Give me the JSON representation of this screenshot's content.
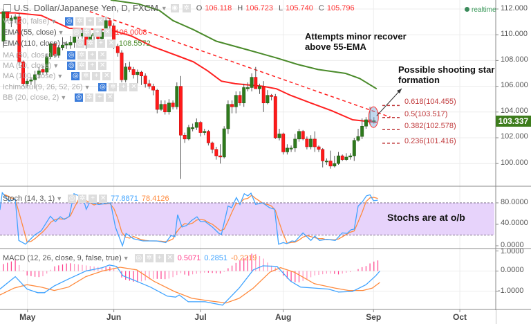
{
  "header": {
    "symbol": "U.S. Dollar/Japanese Yen, D, FXCM",
    "ohlc": {
      "o_label": "O",
      "o": "106.118",
      "h_label": "H",
      "h": "106.723",
      "l_label": "L",
      "l": "105.740",
      "c_label": "C",
      "c": "105.796"
    },
    "realtime": "realtime"
  },
  "indicators": [
    {
      "label": "Vol (20, false)"
    },
    {
      "label": "EMA (55, close)",
      "value": "106.0008"
    },
    {
      "label": "EMA (110, close)",
      "value": "108.5572"
    },
    {
      "label": "MA (50, close)"
    },
    {
      "label": "MA (20, close)"
    },
    {
      "label": "MA (100, close)"
    },
    {
      "label": "Ichimoku (9, 26, 52, 26)"
    },
    {
      "label": "BB (20, close, 2)"
    }
  ],
  "annotations": {
    "note1_line1": "Attempts minor recover",
    "note1_line2": "above 55-EMA",
    "note2_line1": "Possible shooting star",
    "note2_line2": "formation",
    "note3": "Stochs are at o/b"
  },
  "colors": {
    "up": "#2e7a1c",
    "down": "#ff1a1a",
    "ema55": "#ff2020",
    "ema110": "#4a8a2a",
    "stoch_k": "#3fa3ff",
    "stoch_d": "#ff8a3d",
    "macd_hist": "#ff3d8b",
    "band": "#e7d3fb",
    "badge": "#3d7c1c"
  },
  "chart_data": {
    "type": "candlestick",
    "title": "U.S. Dollar/Japanese Yen, D, FXCM",
    "last_price": "103.337",
    "price_axis": {
      "ticks": [
        "112.000",
        "110.000",
        "108.000",
        "106.000",
        "104.000",
        "102.000",
        "100.000"
      ],
      "values": [
        112,
        110,
        108,
        106,
        104,
        102,
        100
      ],
      "ylim": [
        98.6,
        112.7
      ]
    },
    "time_axis": {
      "labels": [
        "May",
        "Jun",
        "Jul",
        "Aug",
        "Sep",
        "Oct"
      ],
      "bar_index": [
        6.1,
        28,
        50,
        71,
        93.9,
        115.8
      ]
    },
    "ohlc": [
      [
        109.5,
        112.0,
        109.0,
        111.8
      ],
      [
        111.8,
        112.0,
        111.1,
        111.3
      ],
      [
        111.1,
        111.5,
        110.6,
        111.3
      ],
      [
        111.2,
        111.6,
        110.9,
        111.4
      ],
      [
        111.4,
        111.7,
        107.6,
        107.9
      ],
      [
        107.9,
        108.0,
        106.0,
        106.2
      ],
      [
        106.2,
        106.6,
        106.0,
        106.4
      ],
      [
        106.4,
        106.7,
        106.1,
        106.5
      ],
      [
        106.5,
        107.2,
        105.8,
        106.9
      ],
      [
        106.9,
        107.5,
        106.6,
        107.2
      ],
      [
        107.3,
        107.6,
        106.9,
        107.1
      ],
      [
        107.1,
        108.5,
        106.9,
        108.3
      ],
      [
        108.3,
        109.4,
        108.1,
        109.3
      ],
      [
        109.3,
        109.5,
        108.2,
        108.4
      ],
      [
        108.4,
        109.2,
        108.2,
        109.0
      ],
      [
        109.0,
        109.8,
        108.8,
        109.2
      ],
      [
        109.2,
        109.5,
        108.9,
        109.3
      ],
      [
        109.2,
        109.9,
        108.9,
        109.4
      ],
      [
        109.4,
        110.4,
        109.0,
        110.2
      ],
      [
        110.2,
        110.5,
        109.7,
        109.9
      ],
      [
        109.9,
        110.4,
        109.7,
        110.1
      ],
      [
        110.0,
        110.3,
        108.9,
        109.2
      ],
      [
        109.2,
        110.3,
        109.0,
        110.0
      ],
      [
        109.9,
        110.4,
        109.6,
        110.1
      ],
      [
        110.1,
        110.5,
        109.4,
        109.7
      ],
      [
        109.7,
        110.4,
        109.4,
        110.2
      ],
      [
        110.2,
        111.4,
        110.0,
        111.1
      ],
      [
        111.1,
        111.3,
        110.4,
        110.7
      ],
      [
        110.7,
        110.9,
        108.9,
        109.1
      ],
      [
        109.1,
        109.3,
        108.3,
        108.6
      ],
      [
        108.6,
        108.8,
        106.3,
        106.5
      ],
      [
        106.5,
        107.8,
        106.3,
        107.5
      ],
      [
        107.5,
        107.9,
        107.1,
        107.3
      ],
      [
        107.3,
        107.5,
        106.6,
        106.9
      ],
      [
        106.9,
        107.3,
        106.2,
        107.1
      ],
      [
        107.1,
        107.2,
        106.1,
        106.8
      ],
      [
        106.8,
        107.0,
        105.9,
        106.2
      ],
      [
        106.2,
        106.5,
        105.8,
        106.0
      ],
      [
        106.0,
        106.2,
        105.3,
        105.7
      ],
      [
        105.7,
        105.8,
        103.9,
        104.2
      ],
      [
        104.2,
        104.9,
        104.1,
        104.6
      ],
      [
        104.6,
        104.9,
        103.8,
        104.0
      ],
      [
        104.0,
        105.0,
        103.8,
        104.7
      ],
      [
        104.7,
        104.9,
        104.2,
        104.4
      ],
      [
        104.4,
        106.3,
        104.2,
        106.0
      ],
      [
        106.0,
        106.8,
        98.8,
        102.2
      ],
      [
        102.2,
        102.4,
        101.6,
        101.9
      ],
      [
        101.9,
        103.0,
        101.8,
        102.8
      ],
      [
        102.7,
        103.1,
        102.5,
        102.8
      ],
      [
        102.8,
        103.5,
        102.6,
        103.2
      ],
      [
        103.2,
        103.3,
        102.1,
        102.4
      ],
      [
        102.4,
        102.7,
        102.2,
        102.5
      ],
      [
        102.5,
        102.6,
        101.4,
        101.6
      ],
      [
        101.6,
        101.7,
        100.8,
        101.1
      ],
      [
        101.1,
        101.3,
        100.3,
        100.6
      ],
      [
        100.6,
        101.5,
        100.0,
        100.5
      ],
      [
        100.5,
        102.9,
        100.4,
        102.7
      ],
      [
        102.7,
        104.9,
        102.3,
        104.6
      ],
      [
        104.6,
        104.9,
        103.9,
        104.4
      ],
      [
        104.4,
        105.6,
        103.9,
        105.3
      ],
      [
        105.3,
        105.6,
        104.5,
        104.7
      ],
      [
        104.7,
        106.2,
        104.4,
        105.9
      ],
      [
        105.8,
        106.3,
        105.6,
        105.9
      ],
      [
        105.9,
        107.0,
        105.6,
        106.7
      ],
      [
        106.7,
        107.5,
        105.8,
        105.8
      ],
      [
        105.8,
        106.2,
        105.4,
        106.0
      ],
      [
        106.0,
        106.4,
        104.0,
        104.7
      ],
      [
        104.7,
        105.7,
        104.6,
        105.3
      ],
      [
        105.3,
        105.4,
        104.9,
        105.2
      ],
      [
        105.2,
        105.4,
        101.9,
        102.0
      ],
      [
        102.0,
        102.7,
        101.8,
        102.3
      ],
      [
        102.3,
        102.4,
        100.7,
        100.9
      ],
      [
        100.9,
        101.5,
        100.7,
        101.2
      ],
      [
        101.2,
        101.4,
        100.9,
        101.2
      ],
      [
        101.2,
        102.3,
        100.9,
        101.9
      ],
      [
        101.9,
        102.7,
        101.7,
        102.5
      ],
      [
        102.5,
        102.6,
        101.8,
        101.9
      ],
      [
        101.9,
        102.1,
        101.1,
        101.3
      ],
      [
        101.3,
        102.2,
        101.1,
        101.9
      ],
      [
        101.9,
        102.5,
        100.9,
        101.3
      ],
      [
        101.3,
        101.4,
        100.9,
        101.1
      ],
      [
        101.1,
        101.2,
        99.7,
        100.2
      ],
      [
        100.2,
        100.4,
        99.9,
        100.2
      ],
      [
        100.2,
        101.0,
        99.6,
        99.8
      ],
      [
        99.8,
        100.6,
        99.7,
        100.0
      ],
      [
        100.0,
        100.9,
        99.9,
        100.6
      ],
      [
        100.6,
        100.7,
        100.2,
        100.3
      ],
      [
        100.3,
        100.8,
        100.2,
        100.5
      ],
      [
        100.5,
        100.8,
        100.3,
        100.6
      ],
      [
        100.6,
        102.0,
        100.2,
        101.8
      ],
      [
        101.8,
        102.7,
        101.7,
        102.1
      ],
      [
        102.1,
        103.5,
        101.9,
        102.9
      ],
      [
        102.9,
        103.6,
        102.7,
        103.4
      ],
      [
        103.4,
        104.4,
        103.0,
        103.3
      ],
      [
        103.3,
        103.6,
        103.1,
        103.34
      ]
    ],
    "ema55": [
      [
        -0.9,
        111.7
      ],
      [
        3,
        111.7
      ],
      [
        9.6,
        111.5
      ],
      [
        16.7,
        110.5
      ],
      [
        25.4,
        110.4
      ],
      [
        28,
        110.3
      ],
      [
        32.5,
        109.9
      ],
      [
        37.7,
        109.1
      ],
      [
        43.9,
        108.4
      ],
      [
        48.2,
        107.9
      ],
      [
        51.8,
        107.2
      ],
      [
        55.3,
        106.4
      ],
      [
        58.8,
        106.2
      ],
      [
        65.8,
        106.0
      ],
      [
        69.3,
        105.8
      ],
      [
        72.8,
        105.3
      ],
      [
        78,
        104.7
      ],
      [
        83.3,
        104.1
      ],
      [
        88.6,
        103.4
      ],
      [
        94.7,
        103.2
      ]
    ],
    "ema110": [
      [
        27.2,
        112.7
      ],
      [
        34.2,
        112.4
      ],
      [
        39.5,
        111.9
      ],
      [
        43,
        111.1
      ],
      [
        48.2,
        110.4
      ],
      [
        54,
        109.5
      ],
      [
        62.3,
        108.8
      ],
      [
        69.3,
        108.2
      ],
      [
        74.6,
        107.7
      ],
      [
        79.8,
        107.3
      ],
      [
        86.8,
        107.0
      ],
      [
        90.4,
        106.6
      ],
      [
        94.7,
        105.8
      ]
    ],
    "trendline": {
      "style": "dashed",
      "from": [
        21.9,
        111.8
      ],
      "to": [
        98.2,
        103.6
      ]
    },
    "fibonacci": [
      {
        "ratio": 0.618,
        "value": 104.455,
        "label": "0.618(104.455)"
      },
      {
        "ratio": 0.5,
        "value": 103.517,
        "label": "0.5(103.517)"
      },
      {
        "ratio": 0.382,
        "value": 102.578,
        "label": "0.382(102.578)"
      },
      {
        "ratio": 0.236,
        "value": 101.416,
        "label": "0.236(101.416)"
      }
    ],
    "stoch": {
      "label": "Stoch (14, 3, 1)",
      "k_value": "77.8871",
      "d_value": "78.4126",
      "ticks": [
        "80.0000",
        "40.0000",
        "0.0000"
      ],
      "tick_values": [
        80,
        40,
        0
      ],
      "band": [
        20,
        80
      ],
      "k": [
        [
          -0.9,
          67
        ],
        [
          -0.3,
          99
        ],
        [
          1.4,
          83
        ],
        [
          3,
          87
        ],
        [
          3.9,
          10
        ],
        [
          5.6,
          3
        ],
        [
          7.9,
          20
        ],
        [
          9.6,
          28
        ],
        [
          11.9,
          55
        ],
        [
          13.2,
          45
        ],
        [
          14.4,
          54
        ],
        [
          15.4,
          49
        ],
        [
          16.7,
          55
        ],
        [
          17.9,
          97
        ],
        [
          20.2,
          90
        ],
        [
          21,
          68
        ],
        [
          21.9,
          81
        ],
        [
          24.2,
          77
        ],
        [
          27.2,
          80
        ],
        [
          28.4,
          35
        ],
        [
          30.2,
          0
        ],
        [
          31.1,
          23
        ],
        [
          33,
          13
        ],
        [
          35.4,
          9
        ],
        [
          38.9,
          9
        ],
        [
          41.2,
          6
        ],
        [
          42.5,
          19
        ],
        [
          43.5,
          17
        ],
        [
          44.2,
          58
        ],
        [
          45.3,
          35
        ],
        [
          46.5,
          38
        ],
        [
          47.7,
          47
        ],
        [
          49.1,
          54
        ],
        [
          50,
          45
        ],
        [
          51.2,
          45
        ],
        [
          53,
          35
        ],
        [
          54.7,
          23
        ],
        [
          55.3,
          21
        ],
        [
          57,
          74
        ],
        [
          57.9,
          71
        ],
        [
          59.1,
          90
        ],
        [
          60,
          77
        ],
        [
          61.1,
          97
        ],
        [
          62,
          93
        ],
        [
          62.8,
          98
        ],
        [
          64,
          77
        ],
        [
          65.8,
          80
        ],
        [
          67.5,
          71
        ],
        [
          68.8,
          68
        ],
        [
          69.8,
          3
        ],
        [
          71,
          6
        ],
        [
          71.9,
          4
        ],
        [
          73.2,
          9
        ],
        [
          74,
          8
        ],
        [
          76,
          24
        ],
        [
          78,
          10
        ],
        [
          79,
          18
        ],
        [
          80.2,
          10
        ],
        [
          82,
          12
        ],
        [
          84.2,
          10
        ],
        [
          86,
          24
        ],
        [
          87.2,
          23
        ],
        [
          88.2,
          30
        ],
        [
          89,
          31
        ],
        [
          90,
          74
        ],
        [
          90.9,
          80
        ],
        [
          92.1,
          93
        ],
        [
          93,
          95
        ],
        [
          93.9,
          84
        ],
        [
          95,
          85
        ]
      ]
    },
    "macd": {
      "label": "MACD (12, 26, close, 9, false, true)",
      "hist_value": "0.5071",
      "macd_value": "0.2851",
      "signal_value": "-0.2219",
      "ticks": [
        "1.0000",
        "0.0000",
        "-1.0000"
      ],
      "tick_values": [
        1,
        0,
        -1
      ],
      "macd": [
        [
          -0.9,
          -0.9
        ],
        [
          3,
          -0.28
        ],
        [
          6,
          -0.9
        ],
        [
          8.7,
          -1.08
        ],
        [
          10.4,
          -1.08
        ],
        [
          12.9,
          -0.74
        ],
        [
          16.5,
          -0.4
        ],
        [
          20.9,
          0
        ],
        [
          25.1,
          0.17
        ],
        [
          26.9,
          0.3
        ],
        [
          28.7,
          0.23
        ],
        [
          30.3,
          -0.23
        ],
        [
          33.8,
          -0.51
        ],
        [
          37.3,
          -0.8
        ],
        [
          41.6,
          -1.25
        ],
        [
          43.7,
          -1.3
        ],
        [
          44.6,
          -1.19
        ],
        [
          46.9,
          -1.53
        ],
        [
          51.2,
          -1.53
        ],
        [
          55.6,
          -1.7
        ],
        [
          59.8,
          -0.85
        ],
        [
          63.4,
          0.06
        ],
        [
          65.8,
          0.26
        ],
        [
          69.4,
          0.23
        ],
        [
          72.9,
          -0.51
        ],
        [
          75.4,
          -0.8
        ],
        [
          78.9,
          -0.85
        ],
        [
          82.5,
          -0.9
        ],
        [
          85,
          -1.05
        ],
        [
          88.5,
          -1.02
        ],
        [
          92,
          -0.68
        ],
        [
          94.5,
          -0.23
        ],
        [
          95.5,
          0
        ]
      ],
      "signal": [
        [
          -0.9,
          -1.19
        ],
        [
          2.7,
          -0.85
        ],
        [
          6,
          -0.68
        ],
        [
          9.6,
          -0.8
        ],
        [
          12.9,
          -0.97
        ],
        [
          16.5,
          -0.8
        ],
        [
          20.9,
          -0.28
        ],
        [
          25.1,
          0
        ],
        [
          29.6,
          0.19
        ],
        [
          33.8,
          0.06
        ],
        [
          38.2,
          -0.51
        ],
        [
          43.4,
          -1.02
        ],
        [
          47.8,
          -1.36
        ],
        [
          52,
          -1.48
        ],
        [
          56.5,
          -1.59
        ],
        [
          59.8,
          -1.36
        ],
        [
          63.4,
          -0.85
        ],
        [
          67.6,
          -0.06
        ],
        [
          70.3,
          0.17
        ],
        [
          73.8,
          -0.06
        ],
        [
          78.9,
          -0.63
        ],
        [
          84.1,
          -0.85
        ],
        [
          87.6,
          -0.97
        ],
        [
          91.2,
          -0.97
        ],
        [
          93.6,
          -0.85
        ],
        [
          95.5,
          -0.57
        ]
      ]
    }
  }
}
